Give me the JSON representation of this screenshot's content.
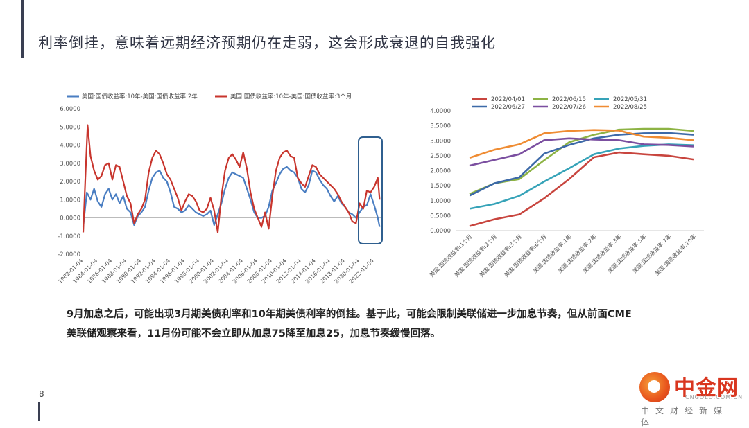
{
  "slide": {
    "title": "利率倒挂，意味着远期经济预期仍在走弱，这会形成衰退的自我强化",
    "page_number": "8",
    "caption_lines": [
      "9月加息之后，可能出现3月期美债利率和10年期美债利率的倒挂。基于此，可能会限制美联储进一步加息节奏，但从前面CME",
      "美联储观察来看，11月份可能不会立即从加息75降至加息25，加息节奏缓慢回落。"
    ],
    "watermark": {
      "name": "中金网",
      "url": "CNGOLD.COM.CN",
      "sub": "中文财经新媒体"
    }
  },
  "chart_data": [
    {
      "type": "line",
      "series": [
        {
          "name": "美国:国债收益率:10年-美国:国债收益率:2年",
          "color": "#4a7ec2",
          "x": [
            1982.0,
            1982.5,
            1983.0,
            1983.5,
            1984.0,
            1984.5,
            1985.0,
            1985.5,
            1986.0,
            1986.5,
            1987.0,
            1987.5,
            1988.0,
            1988.5,
            1989.0,
            1989.5,
            1990.0,
            1990.5,
            1991.0,
            1991.5,
            1992.0,
            1992.5,
            1993.0,
            1993.5,
            1994.0,
            1994.5,
            1995.0,
            1995.5,
            1996.0,
            1996.5,
            1997.0,
            1997.5,
            1998.0,
            1998.5,
            1999.0,
            1999.5,
            2000.0,
            2000.5,
            2001.0,
            2001.5,
            2002.0,
            2002.5,
            2003.0,
            2003.5,
            2004.0,
            2004.5,
            2005.0,
            2005.5,
            2006.0,
            2006.5,
            2007.0,
            2007.5,
            2008.0,
            2008.5,
            2009.0,
            2009.5,
            2010.0,
            2010.5,
            2011.0,
            2011.5,
            2012.0,
            2012.5,
            2013.0,
            2013.5,
            2014.0,
            2014.5,
            2015.0,
            2015.5,
            2016.0,
            2016.5,
            2017.0,
            2017.5,
            2018.0,
            2018.5,
            2019.0,
            2019.5,
            2020.0,
            2020.5,
            2021.0,
            2021.5,
            2022.0,
            2022.5,
            2022.75
          ],
          "values": [
            -0.5,
            1.4,
            1.0,
            1.6,
            0.9,
            0.6,
            1.3,
            1.6,
            1.0,
            1.3,
            0.8,
            1.2,
            0.5,
            0.3,
            -0.4,
            0.1,
            0.3,
            0.6,
            1.5,
            2.2,
            2.5,
            2.6,
            2.2,
            2.0,
            1.4,
            0.6,
            0.5,
            0.3,
            0.4,
            0.7,
            0.5,
            0.3,
            0.2,
            0.1,
            0.2,
            0.4,
            -0.4,
            0.2,
            0.8,
            1.6,
            2.2,
            2.5,
            2.4,
            2.3,
            2.2,
            1.6,
            1.0,
            0.3,
            0.0,
            0.0,
            0.1,
            0.6,
            1.5,
            1.9,
            2.4,
            2.7,
            2.8,
            2.6,
            2.5,
            2.2,
            1.6,
            1.4,
            1.8,
            2.6,
            2.5,
            2.1,
            1.8,
            1.6,
            1.2,
            0.9,
            1.2,
            0.8,
            0.6,
            0.3,
            0.2,
            0.0,
            0.3,
            0.6,
            0.7,
            1.3,
            0.7,
            0.0,
            -0.5
          ]
        },
        {
          "name": "美国:国债收益率:10年-美国:国债收益率:3个月",
          "color": "#c8352d",
          "x": [
            1982.0,
            1982.3,
            1982.6,
            1983.0,
            1983.5,
            1984.0,
            1984.5,
            1985.0,
            1985.5,
            1986.0,
            1986.5,
            1987.0,
            1987.5,
            1988.0,
            1988.5,
            1989.0,
            1989.5,
            1990.0,
            1990.5,
            1991.0,
            1991.5,
            1992.0,
            1992.5,
            1993.0,
            1993.5,
            1994.0,
            1994.5,
            1995.0,
            1995.5,
            1996.0,
            1996.5,
            1997.0,
            1997.5,
            1998.0,
            1998.5,
            1999.0,
            1999.5,
            2000.0,
            2000.5,
            2001.0,
            2001.5,
            2002.0,
            2002.5,
            2003.0,
            2003.5,
            2004.0,
            2004.5,
            2005.0,
            2005.5,
            2006.0,
            2006.5,
            2007.0,
            2007.5,
            2008.0,
            2008.5,
            2009.0,
            2009.5,
            2010.0,
            2010.5,
            2011.0,
            2011.5,
            2012.0,
            2012.5,
            2013.0,
            2013.5,
            2014.0,
            2014.5,
            2015.0,
            2015.5,
            2016.0,
            2016.5,
            2017.0,
            2017.5,
            2018.0,
            2018.5,
            2019.0,
            2019.5,
            2020.0,
            2020.5,
            2021.0,
            2021.5,
            2022.0,
            2022.5,
            2022.75
          ],
          "values": [
            -0.8,
            2.2,
            5.1,
            3.4,
            2.6,
            2.1,
            2.3,
            2.9,
            3.0,
            2.1,
            2.9,
            2.8,
            2.0,
            1.2,
            0.8,
            -0.3,
            0.2,
            0.5,
            1.0,
            2.5,
            3.3,
            3.7,
            3.5,
            3.0,
            2.4,
            2.1,
            1.6,
            1.1,
            0.4,
            0.9,
            1.3,
            1.2,
            0.9,
            0.4,
            0.3,
            0.5,
            1.1,
            0.4,
            -0.8,
            1.2,
            2.6,
            3.3,
            3.5,
            3.2,
            2.8,
            3.6,
            2.7,
            1.4,
            0.5,
            0.0,
            -0.5,
            0.3,
            -0.6,
            1.2,
            2.6,
            3.3,
            3.6,
            3.7,
            3.4,
            3.3,
            2.2,
            1.9,
            1.7,
            2.3,
            2.9,
            2.8,
            2.4,
            2.2,
            2.0,
            1.8,
            1.6,
            1.3,
            0.9,
            0.6,
            0.3,
            -0.2,
            -0.3,
            0.8,
            0.5,
            1.5,
            1.4,
            1.7,
            2.2,
            1.0
          ]
        }
      ],
      "xtick_labels": [
        "1982-01-04",
        "1984-01-04",
        "1986-01-04",
        "1988-01-04",
        "1990-01-04",
        "1992-01-04",
        "1994-01-04",
        "1996-01-04",
        "1998-01-04",
        "2000-01-04",
        "2002-01-04",
        "2004-01-04",
        "2006-01-04",
        "2008-01-04",
        "2010-01-04",
        "2012-01-04",
        "2014-01-04",
        "2016-01-04",
        "2018-01-04",
        "2020-01-04",
        "2022-01-04"
      ],
      "xtick_values": [
        1982,
        1984,
        1986,
        1988,
        1990,
        1992,
        1994,
        1996,
        1998,
        2000,
        2002,
        2004,
        2006,
        2008,
        2010,
        2012,
        2014,
        2016,
        2018,
        2020,
        2022
      ],
      "ytick_labels": [
        "6.0000",
        "5.0000",
        "4.0000",
        "3.0000",
        "2.0000",
        "1.0000",
        "0.0000",
        "-1.0000",
        "-2.0000"
      ],
      "ytick_values": [
        6,
        5,
        4,
        3,
        2,
        1,
        0,
        -1,
        -2
      ],
      "ylim": [
        -2,
        6
      ],
      "xlim": [
        1982,
        2023
      ],
      "legend_position": "top",
      "highlight_region": [
        2020.3,
        2023
      ]
    },
    {
      "type": "line",
      "categories": [
        "美国:国债收益率:1个月",
        "美国:国债收益率:2个月",
        "美国:国债收益率:3个月",
        "美国:国债收益率:6个月",
        "美国:国债收益率:1年",
        "美国:国债收益率:2年",
        "美国:国债收益率:3年",
        "美国:国债收益率:5年",
        "美国:国债收益率:7年",
        "美国:国债收益率:10年"
      ],
      "series": [
        {
          "name": "2022/04/01",
          "color": "#c8453e",
          "values": [
            0.15,
            0.38,
            0.54,
            1.08,
            1.72,
            2.45,
            2.61,
            2.55,
            2.5,
            2.38
          ]
        },
        {
          "name": "2022/06/15",
          "color": "#8db344",
          "values": [
            1.22,
            1.58,
            1.72,
            2.35,
            2.95,
            3.2,
            3.37,
            3.4,
            3.4,
            3.33
          ]
        },
        {
          "name": "2022/05/31",
          "color": "#36a3b8",
          "values": [
            0.73,
            0.89,
            1.16,
            1.64,
            2.08,
            2.55,
            2.74,
            2.83,
            2.88,
            2.85
          ]
        },
        {
          "name": "2022/06/27",
          "color": "#3d6aa8",
          "values": [
            1.17,
            1.58,
            1.78,
            2.57,
            2.86,
            3.08,
            3.2,
            3.25,
            3.26,
            3.2
          ]
        },
        {
          "name": "2022/07/26",
          "color": "#7b4fa0",
          "values": [
            2.17,
            2.36,
            2.55,
            3.02,
            3.08,
            3.04,
            3.02,
            2.88,
            2.86,
            2.81
          ]
        },
        {
          "name": "2022/08/25",
          "color": "#ef8c33",
          "values": [
            2.43,
            2.7,
            2.88,
            3.25,
            3.33,
            3.36,
            3.34,
            3.14,
            3.1,
            3.02
          ]
        }
      ],
      "ytick_labels": [
        "4.0000",
        "3.5000",
        "3.0000",
        "2.5000",
        "2.0000",
        "1.5000",
        "1.0000",
        "0.5000",
        "0.0000"
      ],
      "ytick_values": [
        4,
        3.5,
        3,
        2.5,
        2,
        1.5,
        1,
        0.5,
        0
      ],
      "ylim": [
        0,
        4
      ],
      "legend_position": "top"
    }
  ]
}
